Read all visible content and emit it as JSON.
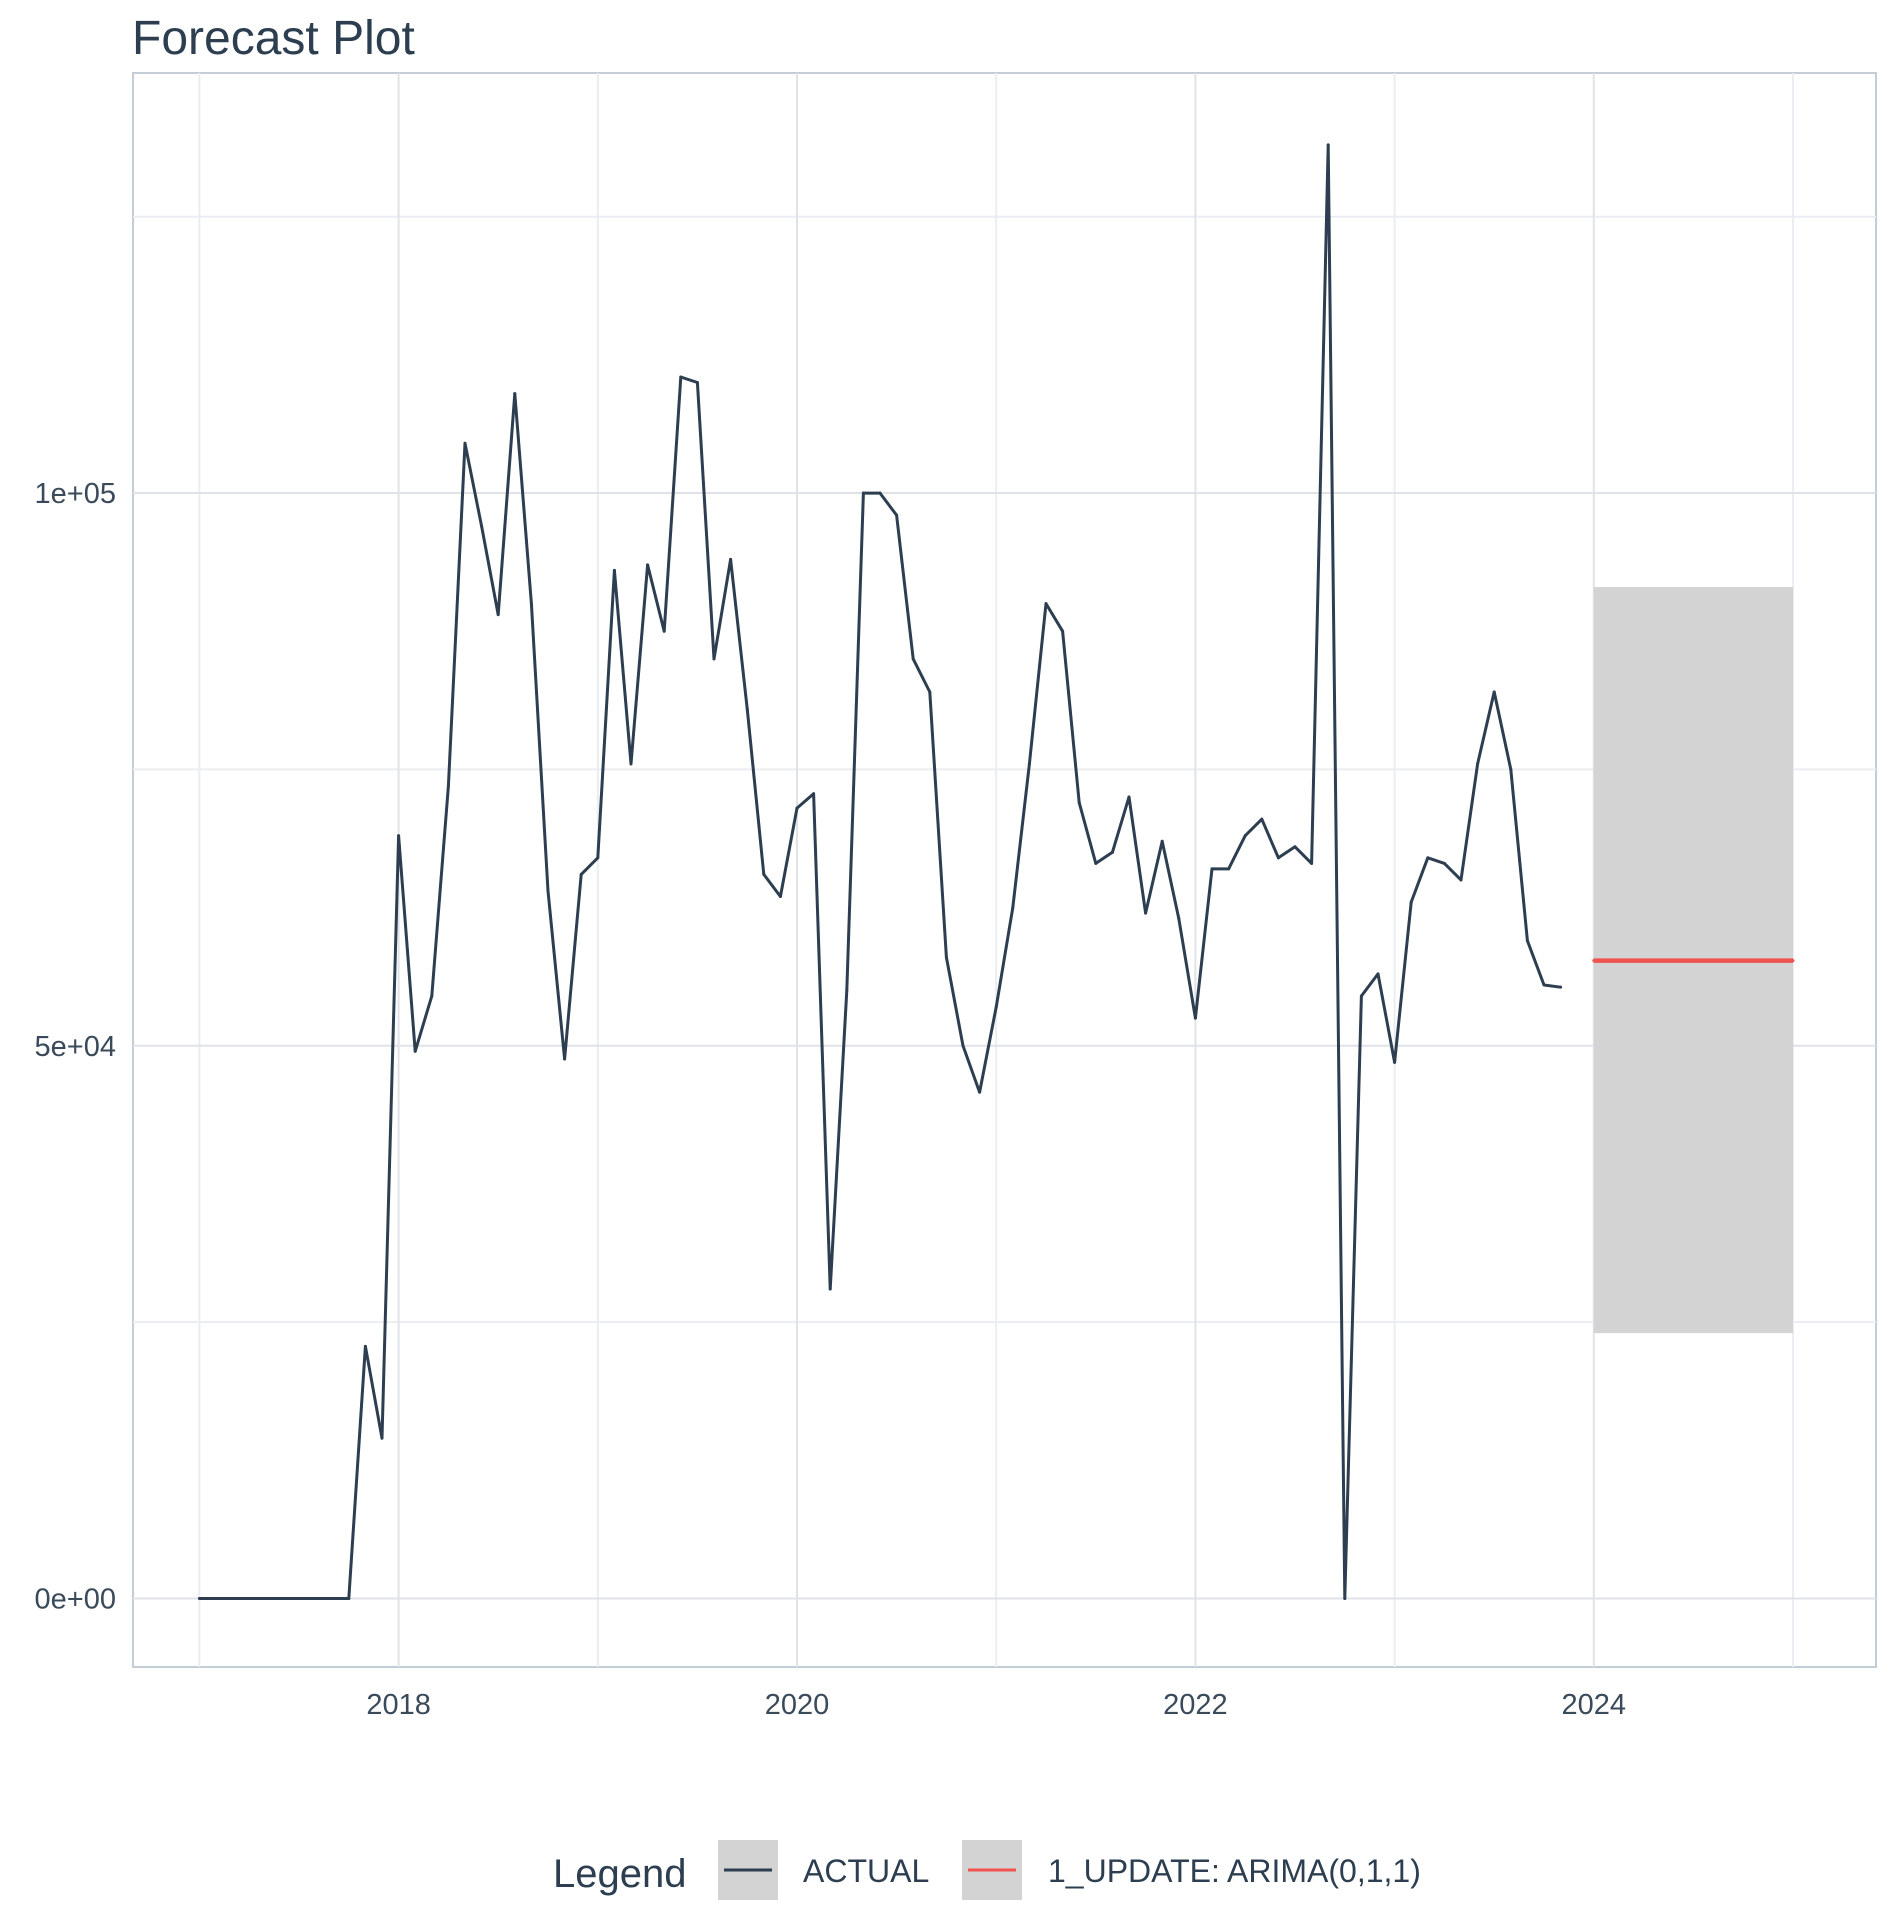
{
  "chart_data": {
    "type": "line",
    "title": "Forecast Plot",
    "xlabel": "",
    "ylabel": "",
    "x_ticks": [
      "2018",
      "2020",
      "2022",
      "2024"
    ],
    "y_ticks": [
      "0e+00",
      "5e+04",
      "1e+05"
    ],
    "xlim": [
      "2016-09-01",
      "2025-06-01"
    ],
    "ylim": [
      -6200,
      138000
    ],
    "grid": true,
    "legend": {
      "title": "Legend",
      "position": "bottom",
      "entries": [
        "ACTUAL",
        "1_UPDATE: ARIMA(0,1,1)"
      ]
    },
    "series": [
      {
        "name": "ACTUAL",
        "color": "#2c3e50",
        "points": [
          [
            "2017-01",
            0
          ],
          [
            "2017-02",
            0
          ],
          [
            "2017-03",
            0
          ],
          [
            "2017-04",
            0
          ],
          [
            "2017-05",
            0
          ],
          [
            "2017-06",
            0
          ],
          [
            "2017-07",
            0
          ],
          [
            "2017-08",
            0
          ],
          [
            "2017-09",
            0
          ],
          [
            "2017-10",
            0
          ],
          [
            "2017-11",
            22800
          ],
          [
            "2017-12",
            14500
          ],
          [
            "2018-01",
            69000
          ],
          [
            "2018-02",
            49500
          ],
          [
            "2018-03",
            54500
          ],
          [
            "2018-04",
            73500
          ],
          [
            "2018-05",
            104500
          ],
          [
            "2018-06",
            97000
          ],
          [
            "2018-07",
            89000
          ],
          [
            "2018-08",
            109000
          ],
          [
            "2018-09",
            90000
          ],
          [
            "2018-10",
            64000
          ],
          [
            "2018-11",
            48800
          ],
          [
            "2018-12",
            65500
          ],
          [
            "2019-01",
            67000
          ],
          [
            "2019-02",
            93000
          ],
          [
            "2019-03",
            75500
          ],
          [
            "2019-04",
            93500
          ],
          [
            "2019-05",
            87500
          ],
          [
            "2019-06",
            110500
          ],
          [
            "2019-07",
            110000
          ],
          [
            "2019-08",
            85000
          ],
          [
            "2019-09",
            94000
          ],
          [
            "2019-10",
            80500
          ],
          [
            "2019-11",
            65500
          ],
          [
            "2019-12",
            63500
          ],
          [
            "2020-01",
            71500
          ],
          [
            "2020-02",
            72800
          ],
          [
            "2020-03",
            28000
          ],
          [
            "2020-04",
            55000
          ],
          [
            "2020-05",
            100000
          ],
          [
            "2020-06",
            100000
          ],
          [
            "2020-07",
            98000
          ],
          [
            "2020-08",
            85000
          ],
          [
            "2020-09",
            82000
          ],
          [
            "2020-10",
            58000
          ],
          [
            "2020-11",
            50000
          ],
          [
            "2020-12",
            45800
          ],
          [
            "2021-01",
            53500
          ],
          [
            "2021-02",
            62500
          ],
          [
            "2021-03",
            75500
          ],
          [
            "2021-04",
            90000
          ],
          [
            "2021-05",
            87500
          ],
          [
            "2021-06",
            72000
          ],
          [
            "2021-07",
            66500
          ],
          [
            "2021-08",
            67500
          ],
          [
            "2021-09",
            72500
          ],
          [
            "2021-10",
            62000
          ],
          [
            "2021-11",
            68500
          ],
          [
            "2021-12",
            61500
          ],
          [
            "2022-01",
            52500
          ],
          [
            "2022-02",
            66000
          ],
          [
            "2022-03",
            66000
          ],
          [
            "2022-04",
            69000
          ],
          [
            "2022-05",
            70500
          ],
          [
            "2022-06",
            67000
          ],
          [
            "2022-07",
            68000
          ],
          [
            "2022-08",
            66500
          ],
          [
            "2022-09",
            131500
          ],
          [
            "2022-10",
            0
          ],
          [
            "2022-11",
            54500
          ],
          [
            "2022-12",
            56500
          ],
          [
            "2023-01",
            48500
          ],
          [
            "2023-02",
            63000
          ],
          [
            "2023-03",
            67000
          ],
          [
            "2023-04",
            66500
          ],
          [
            "2023-05",
            65000
          ],
          [
            "2023-06",
            75500
          ],
          [
            "2023-07",
            82000
          ],
          [
            "2023-08",
            75000
          ],
          [
            "2023-09",
            59500
          ],
          [
            "2023-10",
            55500
          ],
          [
            "2023-11",
            55300
          ]
        ]
      },
      {
        "name": "1_UPDATE: ARIMA(0,1,1)",
        "color": "#f0524f",
        "points": [
          [
            "2024-01",
            57700
          ],
          [
            "2025-01",
            57700
          ]
        ],
        "interval": {
          "lower": 24000,
          "upper": 91500,
          "color": "#d3d3d3"
        }
      }
    ]
  }
}
